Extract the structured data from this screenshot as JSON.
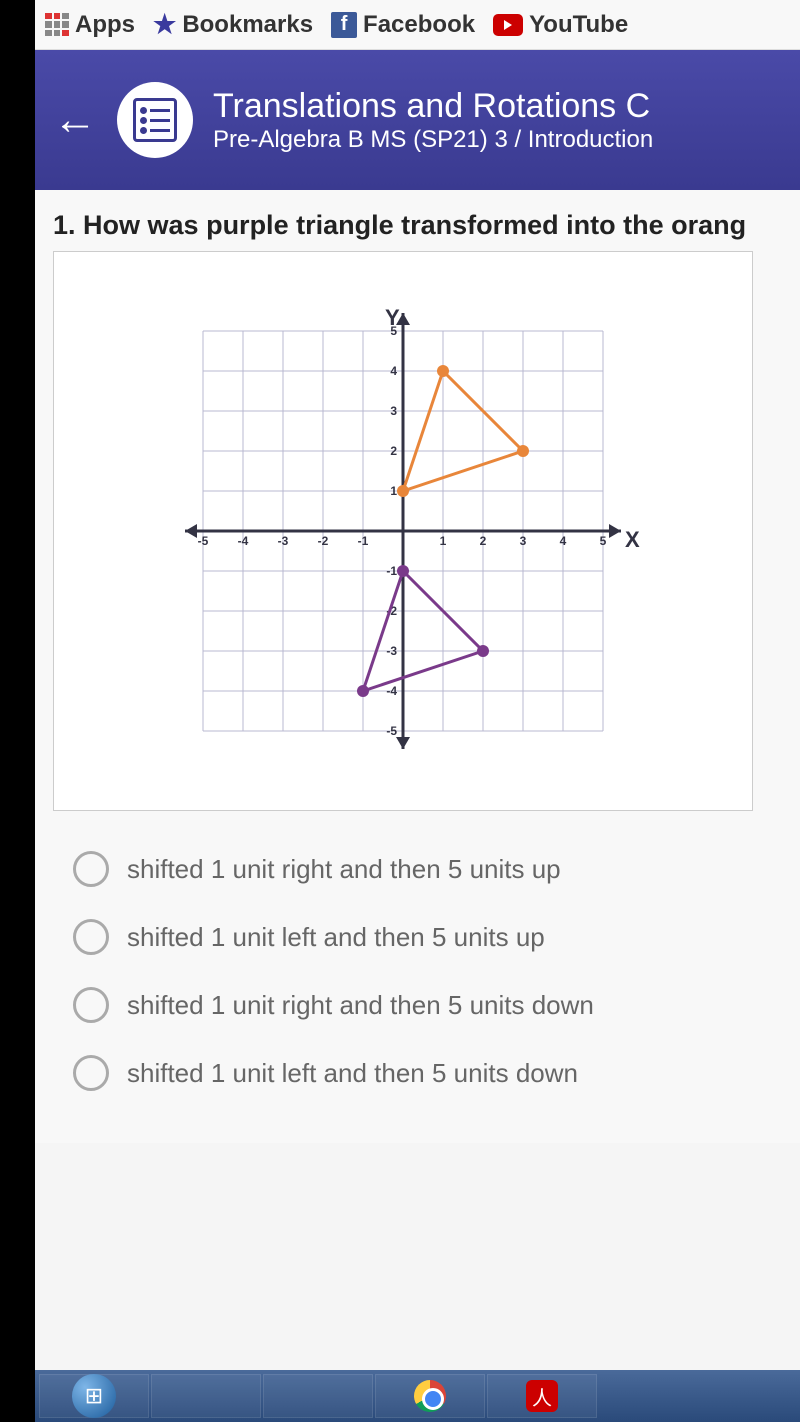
{
  "bookmarks": {
    "apps": "Apps",
    "bookmarks": "Bookmarks",
    "facebook": "Facebook",
    "youtube": "YouTube"
  },
  "header": {
    "title": "Translations and Rotations C",
    "subtitle": "Pre-Algebra B MS (SP21) 3 / Introduction"
  },
  "question": {
    "number": "1.",
    "text": "How was purple triangle transformed into the orang"
  },
  "chart": {
    "type": "coordinate-plane",
    "xlim": [
      -5,
      5
    ],
    "ylim": [
      -5,
      5
    ],
    "tick_step": 1,
    "grid_color": "#b8b8d0",
    "axis_color": "#333344",
    "axis_width": 3,
    "background": "#ffffff",
    "x_label": "X",
    "y_label": "Y",
    "label_fontsize": 22,
    "tick_fontsize": 12,
    "triangles": [
      {
        "name": "orange",
        "stroke": "#e8863a",
        "stroke_width": 3,
        "vertex_fill": "#e8863a",
        "vertex_radius": 6,
        "points": [
          [
            0,
            1
          ],
          [
            1,
            4
          ],
          [
            3,
            2
          ]
        ]
      },
      {
        "name": "purple",
        "stroke": "#7a3a8a",
        "stroke_width": 3,
        "vertex_fill": "#7a3a8a",
        "vertex_radius": 6,
        "points": [
          [
            -1,
            -4
          ],
          [
            0,
            -1
          ],
          [
            2,
            -3
          ]
        ]
      }
    ]
  },
  "options": [
    "shifted 1 unit right and then 5 units up",
    "shifted 1 unit left and then 5 units up",
    "shifted 1 unit right and then 5 units down",
    "shifted 1 unit left and then 5 units down"
  ]
}
